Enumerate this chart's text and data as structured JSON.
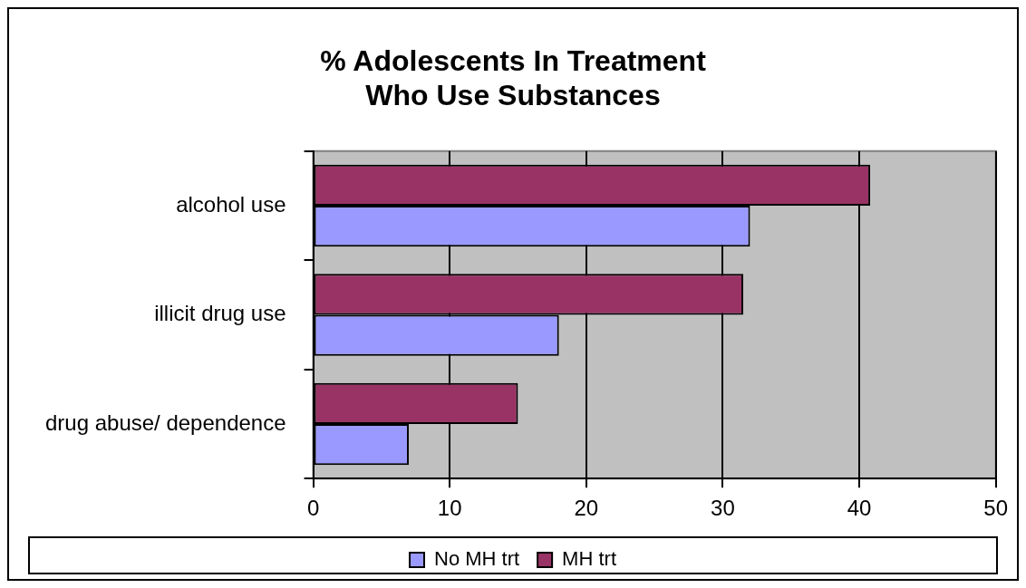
{
  "chart_data": {
    "type": "bar",
    "orientation": "horizontal",
    "title": "% Adolescents In Treatment\nWho Use Substances",
    "categories": [
      "alcohol use",
      "illicit drug use",
      "drug abuse/ dependence"
    ],
    "series": [
      {
        "name": "No MH trt",
        "color": "#9999ff",
        "values": [
          32,
          18,
          7
        ]
      },
      {
        "name": "MH trt",
        "color": "#993366",
        "values": [
          40.8,
          31.5,
          15
        ]
      }
    ],
    "xlim": [
      0,
      50
    ],
    "xticks": [
      0,
      10,
      20,
      30,
      40,
      50
    ],
    "grid": "x",
    "legend": "bottom"
  }
}
